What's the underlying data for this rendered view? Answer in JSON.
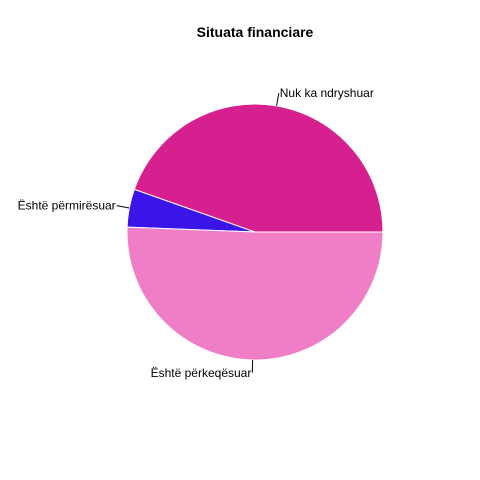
{
  "chart_data": {
    "type": "pie",
    "title": "Situata financiare",
    "slices": [
      {
        "label": "Nuk ka ndryshuar",
        "value": 44.6,
        "color": "#d6208f"
      },
      {
        "label": "Është përmirësuar",
        "value": 4.8,
        "color": "#3b15e8"
      },
      {
        "label": "Është përkeqësuar",
        "value": 50.6,
        "color": "#f07ec6"
      }
    ],
    "start_angle": "3 o'clock",
    "direction": "counterclockwise"
  }
}
